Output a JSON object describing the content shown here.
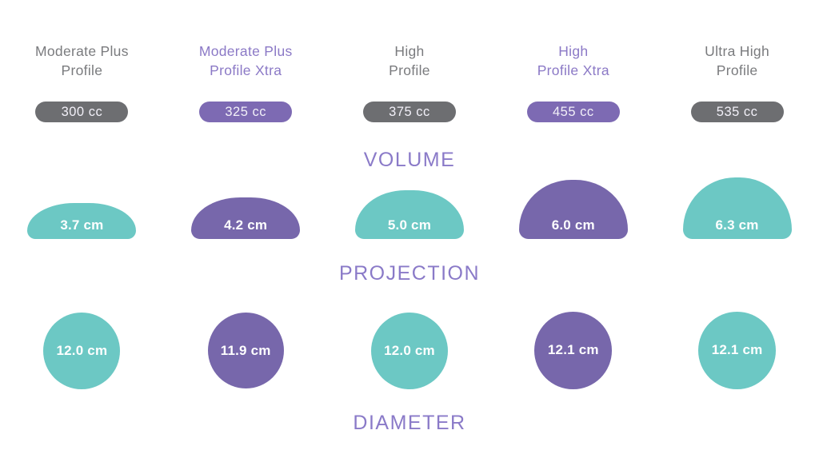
{
  "section_labels": {
    "volume": "VOLUME",
    "projection": "PROJECTION",
    "diameter": "DIAMETER"
  },
  "colors": {
    "teal": "#6cc8c4",
    "purple": "#7767ab",
    "purple_pill": "#7d6ab3",
    "gray_pill": "#6d6e71",
    "title_gray": "#7a7b7e",
    "title_purple": "#8b79c6",
    "section_label_purple": "#8a7ac8"
  },
  "chart_data": {
    "type": "table",
    "categories": [
      "Moderate Plus Profile",
      "Moderate Plus Profile Xtra",
      "High Profile",
      "High Profile Xtra",
      "Ultra High Profile"
    ],
    "series": [
      {
        "name": "VOLUME",
        "unit": "cc",
        "values": [
          300,
          325,
          375,
          455,
          535
        ]
      },
      {
        "name": "PROJECTION",
        "unit": "cm",
        "values": [
          3.7,
          4.2,
          5.0,
          6.0,
          6.3
        ]
      },
      {
        "name": "DIAMETER",
        "unit": "cm",
        "values": [
          12.0,
          11.9,
          12.0,
          12.1,
          12.1
        ]
      }
    ],
    "columns": [
      {
        "title_line1": "Moderate Plus",
        "title_line2": "Profile",
        "volume": "300 cc",
        "projection": "3.7 cm",
        "diameter": "12.0 cm",
        "projection_cm": 3.7,
        "diameter_cm": 12.0,
        "shape_color": "teal",
        "pill_color": "gray",
        "title_color": "gray"
      },
      {
        "title_line1": "Moderate Plus",
        "title_line2": "Profile Xtra",
        "volume": "325 cc",
        "projection": "4.2 cm",
        "diameter": "11.9 cm",
        "projection_cm": 4.2,
        "diameter_cm": 11.9,
        "shape_color": "purple",
        "pill_color": "purple",
        "title_color": "purple"
      },
      {
        "title_line1": "High",
        "title_line2": "Profile",
        "volume": "375 cc",
        "projection": "5.0 cm",
        "diameter": "12.0 cm",
        "projection_cm": 5.0,
        "diameter_cm": 12.0,
        "shape_color": "teal",
        "pill_color": "gray",
        "title_color": "gray"
      },
      {
        "title_line1": "High",
        "title_line2": "Profile Xtra",
        "volume": "455 cc",
        "projection": "6.0 cm",
        "diameter": "12.1 cm",
        "projection_cm": 6.0,
        "diameter_cm": 12.1,
        "shape_color": "purple",
        "pill_color": "purple",
        "title_color": "purple"
      },
      {
        "title_line1": "Ultra High",
        "title_line2": "Profile",
        "volume": "535 cc",
        "projection": "6.3 cm",
        "diameter": "12.1 cm",
        "projection_cm": 6.3,
        "diameter_cm": 12.1,
        "shape_color": "teal",
        "pill_color": "gray",
        "title_color": "gray"
      }
    ]
  }
}
